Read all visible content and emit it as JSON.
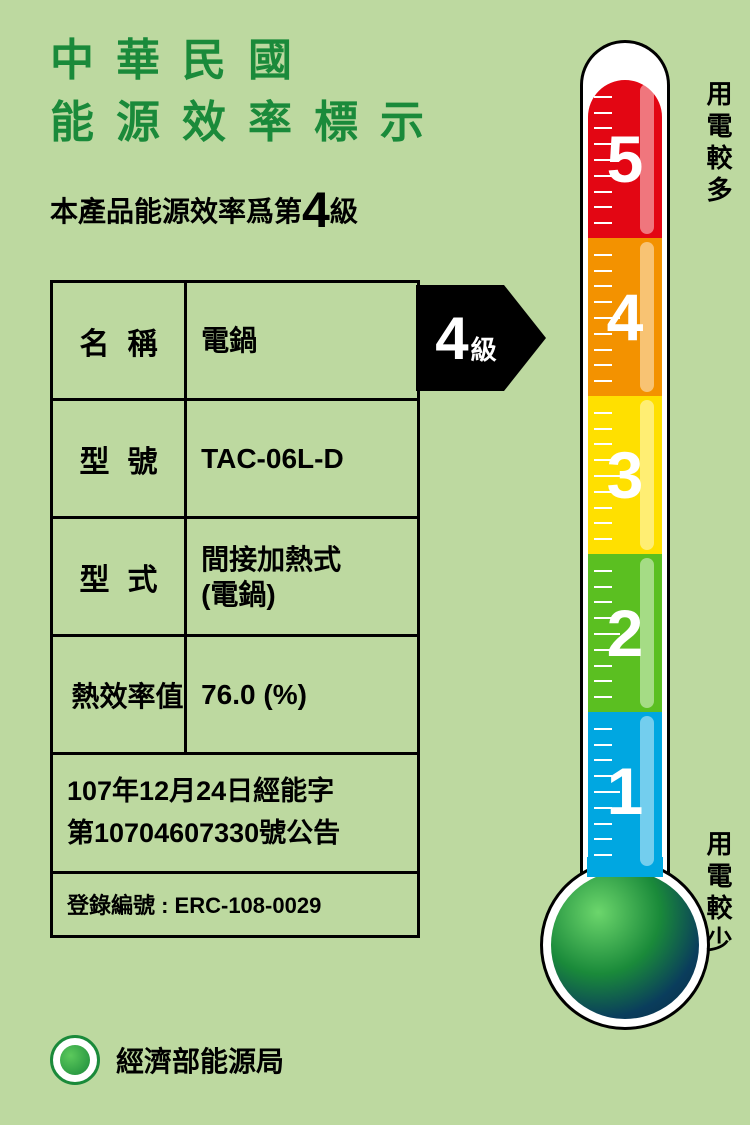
{
  "title_line1": "中華民國",
  "title_line2": "能源效率標示",
  "subtitle_prefix": "本產品能源效率爲第",
  "subtitle_grade": "4",
  "subtitle_suffix": "級",
  "table": {
    "rows": [
      {
        "label": "名稱",
        "value": "電鍋"
      },
      {
        "label": "型號",
        "value": "TAC-06L-D"
      },
      {
        "label": "型式",
        "value": "間接加熱式\n(電鍋)"
      },
      {
        "label": "熱效率值",
        "value": "76.0   (%)"
      }
    ],
    "notice": "107年12月24日經能字\n第10704607330號公告",
    "registration_label": "登錄編號 :",
    "registration_value": "ERC-108-0029"
  },
  "pointer": {
    "grade": "4",
    "suffix": "級"
  },
  "thermometer": {
    "segments": [
      {
        "num": "5",
        "color": "#e30613"
      },
      {
        "num": "4",
        "color": "#f39200"
      },
      {
        "num": "3",
        "color": "#ffe000"
      },
      {
        "num": "2",
        "color": "#5bbf21"
      },
      {
        "num": "1",
        "color": "#00a7e1"
      }
    ],
    "top_label": "用電較多",
    "bottom_label": "用電較少",
    "ticks_per_segment": 9
  },
  "footer": {
    "agency": "經濟部能源局"
  },
  "colors": {
    "background": "#bdd9a0",
    "title_green": "#1a8a3a",
    "black": "#000000",
    "white": "#ffffff"
  }
}
